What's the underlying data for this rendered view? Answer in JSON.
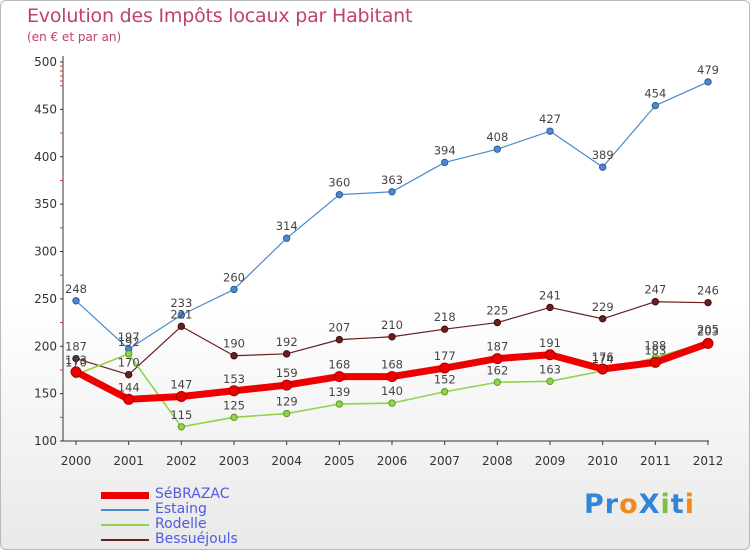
{
  "title": "Evolution des Impôts locaux par Habitant",
  "subtitle": "(en € et par an)",
  "logo": {
    "text": "ProXiti",
    "letters": [
      "P",
      "r",
      "o",
      "X",
      "i",
      "t",
      "i"
    ],
    "colors": [
      "#2f86d6",
      "#2f86d6",
      "#f08a1d",
      "#2f86d6",
      "#7cc242",
      "#2f86d6",
      "#f08a1d"
    ]
  },
  "chart_data": {
    "type": "line",
    "x": [
      "2000",
      "2001",
      "2002",
      "2003",
      "2004",
      "2005",
      "2006",
      "2007",
      "2008",
      "2009",
      "2010",
      "2011",
      "2012"
    ],
    "ylim": [
      100,
      500
    ],
    "yticks": [
      100,
      150,
      200,
      250,
      300,
      350,
      400,
      450,
      500
    ],
    "grid": false,
    "legend_position": "bottom-left",
    "series": [
      {
        "name": "SéBRAZAC",
        "color": "#ee0000",
        "values": [
          173,
          144,
          147,
          153,
          159,
          168,
          168,
          177,
          187,
          191,
          176,
          183,
          203
        ]
      },
      {
        "name": "Estaing",
        "color": "#4a8ad0",
        "values": [
          248,
          197,
          233,
          260,
          314,
          360,
          363,
          394,
          408,
          427,
          389,
          454,
          479
        ]
      },
      {
        "name": "Rodelle",
        "color": "#8fd44a",
        "values": [
          170,
          192,
          115,
          125,
          129,
          139,
          140,
          152,
          162,
          163,
          174,
          188,
          205
        ]
      },
      {
        "name": "Bessuéjouls",
        "color": "#6b1e1e",
        "values": [
          187,
          170,
          221,
          190,
          192,
          207,
          210,
          218,
          225,
          241,
          229,
          247,
          246
        ]
      }
    ]
  }
}
